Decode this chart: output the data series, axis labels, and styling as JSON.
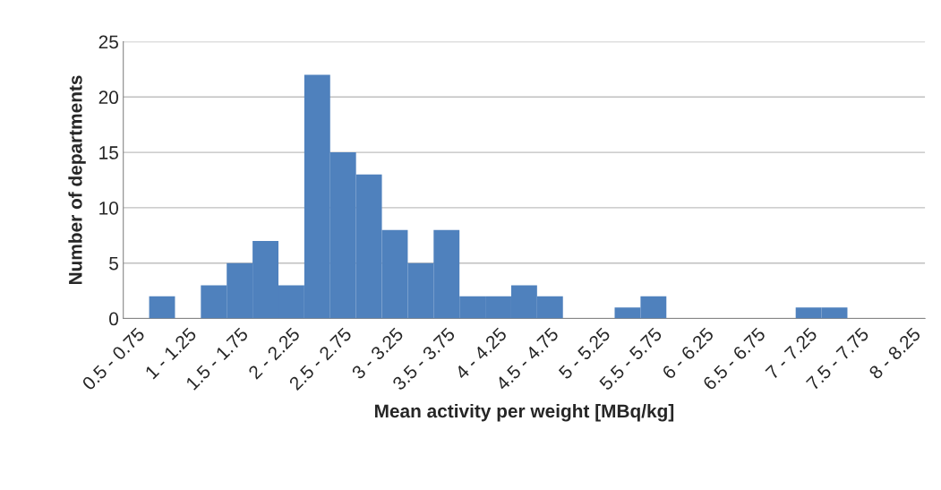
{
  "chart_data": {
    "type": "bar",
    "xlabel": "Mean activity per weight [MBq/kg]",
    "ylabel": "Number of departments",
    "categories": [
      "0.5 - 0.75",
      null,
      "1 - 1.25",
      null,
      "1.5 - 1.75",
      null,
      "2 - 2.25",
      null,
      "2.5 - 2.75",
      null,
      "3 - 3.25",
      null,
      "3.5 - 3.75",
      null,
      "4 - 4.25",
      null,
      "4.5 - 4.75",
      null,
      "5 - 5.25",
      null,
      "5.5 - 5.75",
      null,
      "6 - 6.25",
      null,
      "6.5 - 6.75",
      null,
      "7 - 7.25",
      null,
      "7.5 - 7.75",
      null,
      "8 - 8.25"
    ],
    "values": [
      0,
      2,
      0,
      3,
      5,
      7,
      3,
      22,
      15,
      13,
      8,
      5,
      8,
      2,
      2,
      3,
      2,
      0,
      0,
      1,
      2,
      0,
      0,
      0,
      0,
      0,
      1,
      1,
      0,
      0,
      0
    ],
    "color": "#4f81bd",
    "ylim": [
      0,
      25
    ],
    "yticks": [
      0,
      5,
      10,
      15,
      20,
      25
    ],
    "grid": "y",
    "legend": false
  }
}
